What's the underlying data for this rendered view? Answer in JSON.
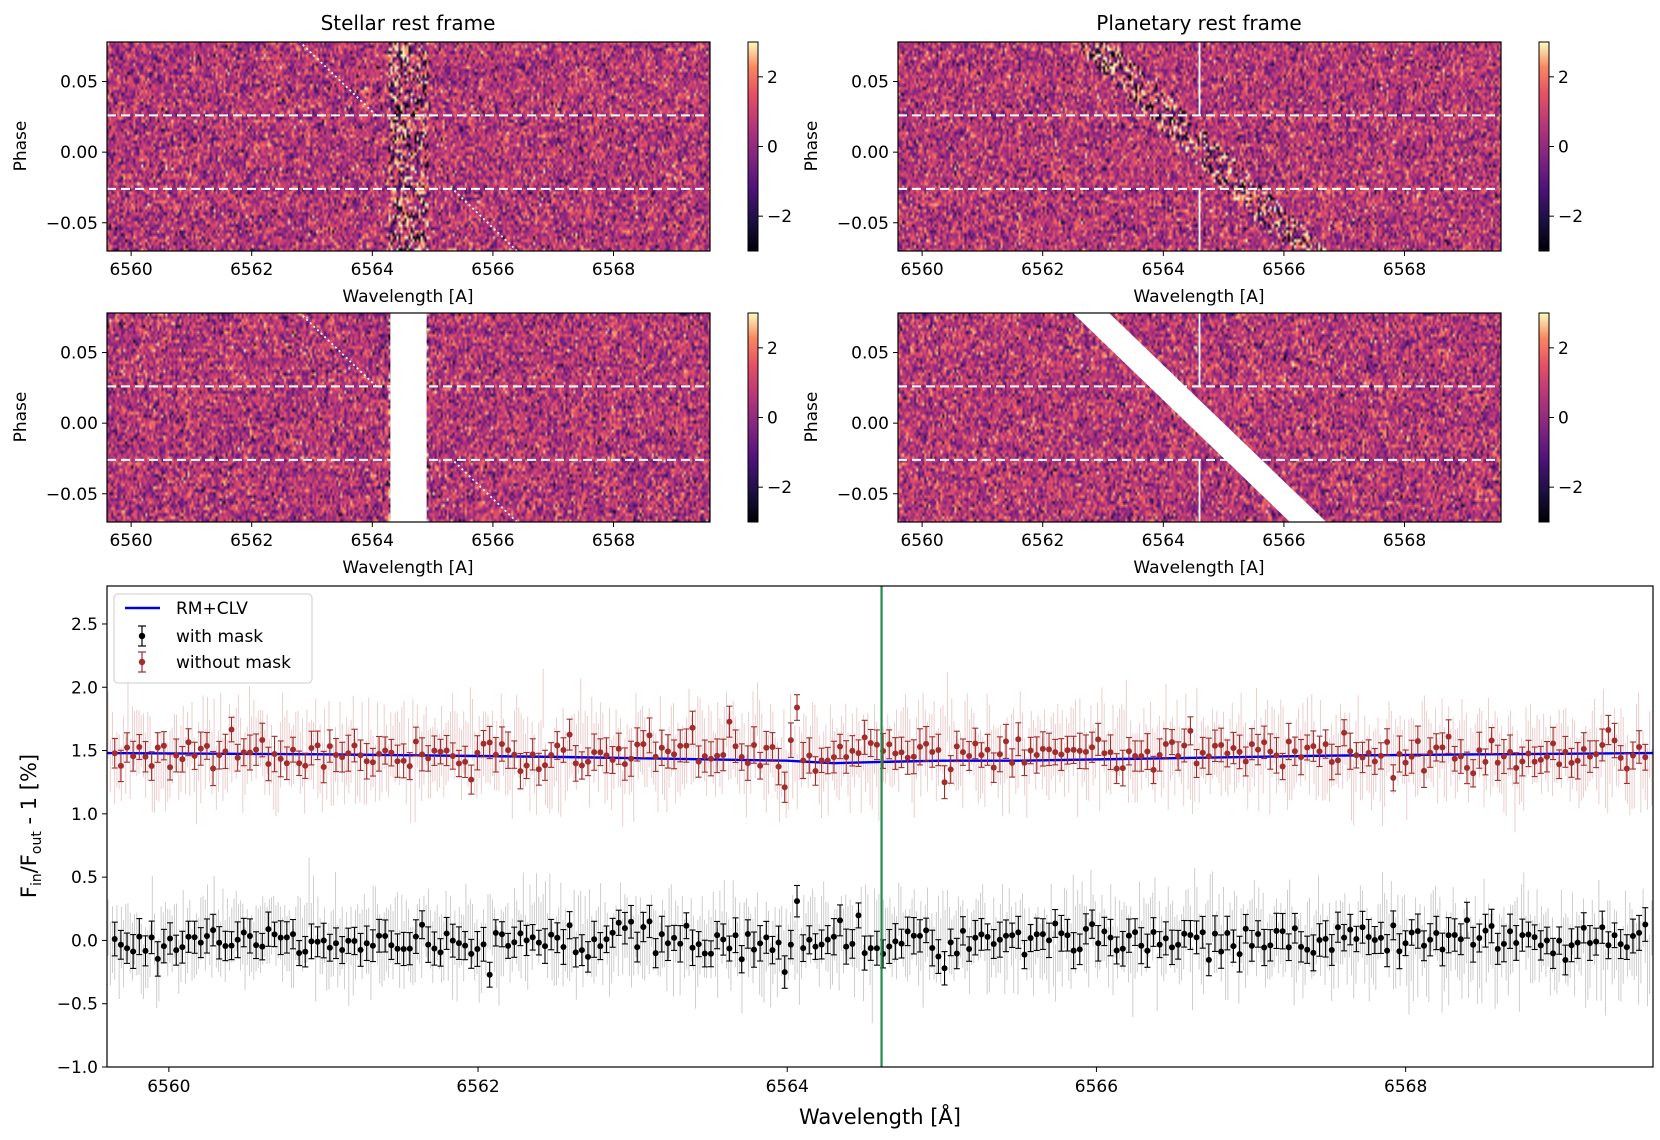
{
  "chart_data": [
    {
      "id": "top-left",
      "type": "heatmap",
      "title": "Stellar rest frame",
      "xlabel": "Wavelength [A]",
      "ylabel": "Phase",
      "xlim": [
        6559.6,
        6569.6
      ],
      "ylim": [
        -0.07,
        0.078
      ],
      "xticks": [
        6560,
        6562,
        6564,
        6566,
        6568
      ],
      "xtick_labels": [
        "6560",
        "6562",
        "6564",
        "6566",
        "6568"
      ],
      "yticks": [
        -0.05,
        0.0,
        0.05
      ],
      "ytick_labels": [
        "−0.05",
        "0.00",
        "0.05"
      ],
      "colorbar": {
        "range": [
          -3,
          3
        ],
        "colormap": "magma",
        "ticks": [
          -2,
          0,
          2
        ],
        "tick_labels": [
          "−2",
          "0",
          "2"
        ]
      },
      "transit_phase_lines": [
        -0.026,
        0.026
      ],
      "stellar_line_center": 6564.6,
      "planet_track": {
        "phase": [
          -0.07,
          0.078
        ],
        "wavelength": [
          6566.4,
          6562.8
        ]
      },
      "mask": null
    },
    {
      "id": "top-right",
      "type": "heatmap",
      "title": "Planetary rest frame",
      "xlabel": "Wavelength [A]",
      "ylabel": "Phase",
      "xlim": [
        6559.6,
        6569.6
      ],
      "ylim": [
        -0.07,
        0.078
      ],
      "xticks": [
        6560,
        6562,
        6564,
        6566,
        6568
      ],
      "xtick_labels": [
        "6560",
        "6562",
        "6564",
        "6566",
        "6568"
      ],
      "yticks": [
        -0.05,
        0.0,
        0.05
      ],
      "ytick_labels": [
        "−0.05",
        "0.00",
        "0.05"
      ],
      "colorbar": {
        "range": [
          -3,
          3
        ],
        "colormap": "magma",
        "ticks": [
          -2,
          0,
          2
        ],
        "tick_labels": [
          "−2",
          "0",
          "2"
        ]
      },
      "transit_phase_lines": [
        -0.026,
        0.026
      ],
      "planet_line_center": 6564.6,
      "stellar_track": {
        "phase": [
          0.078,
          -0.07
        ],
        "wavelength": [
          6562.8,
          6566.4
        ]
      },
      "mask": null
    },
    {
      "id": "middle-left",
      "type": "heatmap",
      "title": "",
      "xlabel": "Wavelength [A]",
      "ylabel": "Phase",
      "xlim": [
        6559.6,
        6569.6
      ],
      "ylim": [
        -0.07,
        0.078
      ],
      "xticks": [
        6560,
        6562,
        6564,
        6566,
        6568
      ],
      "xtick_labels": [
        "6560",
        "6562",
        "6564",
        "6566",
        "6568"
      ],
      "yticks": [
        -0.05,
        0.0,
        0.05
      ],
      "ytick_labels": [
        "−0.05",
        "0.00",
        "0.05"
      ],
      "colorbar": {
        "range": [
          -3,
          3
        ],
        "colormap": "magma",
        "ticks": [
          -2,
          0,
          2
        ],
        "tick_labels": [
          "−2",
          "0",
          "2"
        ]
      },
      "transit_phase_lines": [
        -0.026,
        0.026
      ],
      "planet_track": {
        "phase": [
          -0.07,
          0.078
        ],
        "wavelength": [
          6566.4,
          6562.8
        ]
      },
      "mask": {
        "kind": "vertical",
        "wavelength": [
          6564.3,
          6564.9
        ]
      }
    },
    {
      "id": "middle-right",
      "type": "heatmap",
      "title": "",
      "xlabel": "Wavelength [A]",
      "ylabel": "Phase",
      "xlim": [
        6559.6,
        6569.6
      ],
      "ylim": [
        -0.07,
        0.078
      ],
      "xticks": [
        6560,
        6562,
        6564,
        6566,
        6568
      ],
      "xtick_labels": [
        "6560",
        "6562",
        "6564",
        "6566",
        "6568"
      ],
      "yticks": [
        -0.05,
        0.0,
        0.05
      ],
      "ytick_labels": [
        "−0.05",
        "0.00",
        "0.05"
      ],
      "colorbar": {
        "range": [
          -3,
          3
        ],
        "colormap": "magma",
        "ticks": [
          -2,
          0,
          2
        ],
        "tick_labels": [
          "−2",
          "0",
          "2"
        ]
      },
      "transit_phase_lines": [
        -0.026,
        0.026
      ],
      "planet_line_center": 6564.6,
      "mask": {
        "kind": "diagonal",
        "phase": [
          0.078,
          -0.07
        ],
        "wavelength_left": [
          6562.5,
          6566.1
        ],
        "wavelength_right": [
          6563.1,
          6566.7
        ]
      }
    },
    {
      "id": "bottom",
      "type": "scatter",
      "title": "",
      "xlabel": "Wavelength [Å]",
      "ylabel_main": "F",
      "ylabel_sub1": "in",
      "ylabel_mid": "/F",
      "ylabel_sub2": "out",
      "ylabel_tail": " - 1 [%]",
      "xlim": [
        6559.6,
        6569.6
      ],
      "ylim": [
        -1.0,
        2.8
      ],
      "xticks": [
        6560,
        6562,
        6564,
        6566,
        6568
      ],
      "xtick_labels": [
        "6560",
        "6562",
        "6564",
        "6566",
        "6568"
      ],
      "yticks": [
        -1.0,
        -0.5,
        0.0,
        0.5,
        1.0,
        1.5,
        2.0,
        2.5
      ],
      "ytick_labels": [
        "−1.0",
        "−0.5",
        "0.0",
        "0.5",
        "1.0",
        "1.5",
        "2.0",
        "2.5"
      ],
      "vertical_marker": 6564.61,
      "legend_position": "top-left",
      "series": [
        {
          "name": "RM+CLV",
          "kind": "line",
          "color": "#0000ee",
          "x": [
            6559.6,
            6561.0,
            6562.5,
            6563.5,
            6564.0,
            6564.3,
            6564.6,
            6565.0,
            6565.5,
            6566.5,
            6567.5,
            6568.5,
            6569.6
          ],
          "y": [
            1.48,
            1.47,
            1.45,
            1.43,
            1.42,
            1.4,
            1.41,
            1.42,
            1.42,
            1.44,
            1.46,
            1.47,
            1.48
          ]
        },
        {
          "name": "with mask",
          "kind": "errorbar",
          "color": "#000000",
          "baseline": 0.0,
          "scatter": 0.07,
          "error": 0.12,
          "spikes": [
            {
              "x": 6564.05,
              "y": 0.31
            },
            {
              "x": 6564.0,
              "y": -0.25
            },
            {
              "x": 6565.0,
              "y": -0.22
            },
            {
              "x": 6563.1,
              "y": 0.15
            }
          ]
        },
        {
          "name": "without mask",
          "kind": "errorbar",
          "color": "#a02c2c",
          "baseline": 1.47,
          "scatter": 0.07,
          "error": 0.12,
          "spikes": [
            {
              "x": 6564.05,
              "y": 1.84
            },
            {
              "x": 6564.0,
              "y": 1.21
            },
            {
              "x": 6565.0,
              "y": 1.25
            },
            {
              "x": 6563.1,
              "y": 1.62
            }
          ]
        }
      ]
    }
  ]
}
